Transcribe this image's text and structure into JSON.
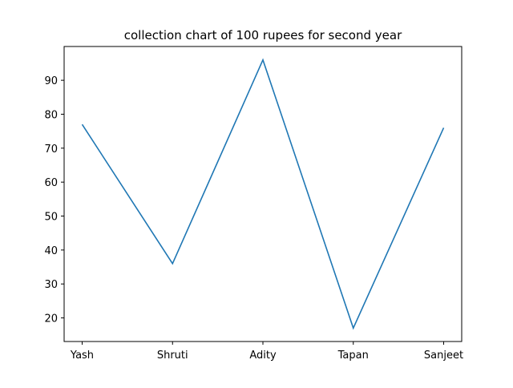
{
  "chart_data": {
    "type": "line",
    "title": "collection chart of 100 rupees for second year",
    "xlabel": "",
    "ylabel": "",
    "categories": [
      "Yash",
      "Shruti",
      "Adity",
      "Tapan",
      "Sanjeet"
    ],
    "series": [
      {
        "values": [
          77,
          36,
          96,
          17,
          76
        ],
        "color": "#1f77b4"
      }
    ],
    "ylim": [
      13.05,
      99.95
    ],
    "yticks": [
      20,
      30,
      40,
      50,
      60,
      70,
      80,
      90
    ],
    "grid": false,
    "legend": "none"
  }
}
